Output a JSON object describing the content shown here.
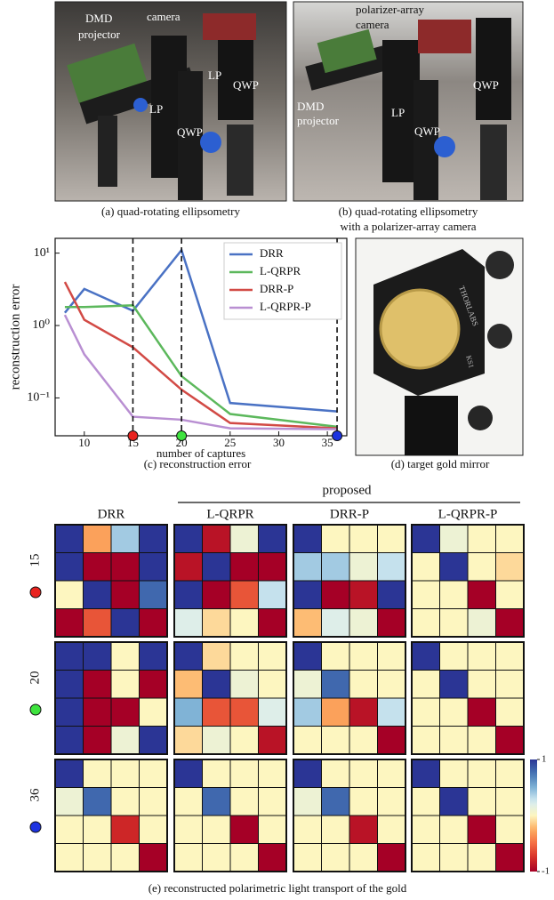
{
  "figure": {
    "photo_a": {
      "labels": [
        "DMD",
        "projector",
        "camera",
        "LP",
        "LP",
        "QWP",
        "QWP"
      ],
      "caption": "(a) quad-rotating ellipsometry"
    },
    "photo_b": {
      "labels": [
        "polarizer-array",
        "camera",
        "DMD",
        "projector",
        "LP",
        "QWP",
        "QWP"
      ],
      "caption": [
        "(b) quad-rotating ellipsometry",
        "with a polarizer-array camera"
      ]
    },
    "chart_caption": "(c) reconstruction error",
    "photo_d": {
      "labels": [
        "THORLABS",
        "KS1"
      ],
      "caption": "(d) target gold mirror"
    },
    "heatmap_caption": "(e) reconstructed polarimetric light transport of the gold"
  },
  "chart_data": [
    {
      "type": "line",
      "xlabel": "number of captures",
      "ylabel": "reconstruction error",
      "x": [
        8,
        10,
        15,
        20,
        25,
        36
      ],
      "series": [
        {
          "name": "DRR",
          "color": "#4a72c4",
          "values": [
            1.5,
            3.2,
            1.6,
            11,
            0.085,
            0.065
          ]
        },
        {
          "name": "L-QRPR",
          "color": "#5cb85c",
          "values": [
            1.8,
            1.8,
            1.9,
            0.2,
            0.06,
            0.04
          ]
        },
        {
          "name": "DRR-P",
          "color": "#d24a45",
          "values": [
            4,
            1.2,
            0.5,
            0.13,
            0.045,
            0.038
          ]
        },
        {
          "name": "L-QRPR-P",
          "color": "#b98fd2",
          "values": [
            1.4,
            0.4,
            0.055,
            0.05,
            0.038,
            0.037
          ]
        }
      ],
      "xlim": [
        7,
        37
      ],
      "xticks": [
        10,
        15,
        20,
        25,
        30,
        35
      ],
      "log_y": true,
      "ylim": [
        0.03,
        16
      ],
      "yticks": [
        {
          "value": 0.1,
          "label": "10⁻¹"
        },
        {
          "value": 1,
          "label": "10⁰"
        },
        {
          "value": 10,
          "label": "10¹"
        }
      ],
      "legend": "upper right",
      "highlight_x": [
        15,
        20,
        36
      ],
      "highlight_colors": [
        "#e8231f",
        "#3ee33e",
        "#1d33e0"
      ]
    },
    {
      "type": "heatmap",
      "group_label": "proposed",
      "columns": [
        "DRR",
        "L-QRPR",
        "DRR-P",
        "L-QRPR-P"
      ],
      "rows": [
        "15",
        "20",
        "36"
      ],
      "row_colors": [
        "#e8231f",
        "#3ee33e",
        "#1d33e0"
      ],
      "zlim": [
        -1,
        1
      ],
      "colorbar_ticks": [
        1,
        -1
      ],
      "matrices": [
        [
          [
            1,
            -0.3,
            0.4,
            1,
            1,
            -1,
            -1,
            1,
            0,
            1,
            -1,
            0.8,
            -1,
            -0.6,
            1,
            -1
          ],
          [
            1,
            -0.9,
            0.1,
            1,
            -0.9,
            1,
            -1,
            -1,
            1,
            -1,
            -0.6,
            0.3,
            0.2,
            -0.1,
            0,
            -1
          ],
          [
            1,
            0,
            0,
            0,
            0.4,
            0.4,
            0.1,
            0.3,
            1,
            -1,
            -0.9,
            1,
            -0.2,
            0.2,
            0.1,
            -1
          ],
          [
            1,
            0.1,
            0,
            0,
            0,
            1,
            0,
            -0.1,
            0,
            0,
            -1,
            0,
            0,
            0,
            0.1,
            -1
          ]
        ],
        [
          [
            1,
            1,
            0,
            1,
            1,
            -1,
            0,
            -1,
            1,
            -1,
            -1,
            0,
            1,
            -1,
            0.1,
            1
          ],
          [
            1,
            -0.1,
            0,
            0,
            -0.2,
            1,
            0.1,
            0,
            0.5,
            -0.6,
            -0.6,
            0.2,
            -0.1,
            0.1,
            0,
            -0.9
          ],
          [
            1,
            0,
            0,
            0,
            0.1,
            0.8,
            0,
            0,
            0.4,
            -0.3,
            -0.9,
            0.3,
            0,
            0,
            0,
            -1
          ],
          [
            1,
            0,
            0,
            0,
            0,
            1,
            0,
            0,
            0,
            0,
            -1,
            0,
            0,
            0,
            0,
            -1
          ]
        ],
        [
          [
            1,
            0,
            0,
            0,
            0.1,
            0.8,
            0,
            0,
            0,
            0,
            -0.8,
            0,
            0,
            0,
            0,
            -1
          ],
          [
            1,
            0,
            0,
            0,
            0,
            0.8,
            0,
            0,
            0,
            0,
            -1,
            0,
            0,
            0,
            0,
            -1
          ],
          [
            1,
            0,
            0,
            0,
            0.1,
            0.8,
            0,
            0,
            0,
            0,
            -0.9,
            0,
            0,
            0,
            0,
            -1
          ],
          [
            1,
            0,
            0,
            0,
            0,
            1,
            0,
            0,
            0,
            0,
            -1,
            0,
            0,
            0,
            0,
            -1
          ]
        ]
      ]
    }
  ]
}
